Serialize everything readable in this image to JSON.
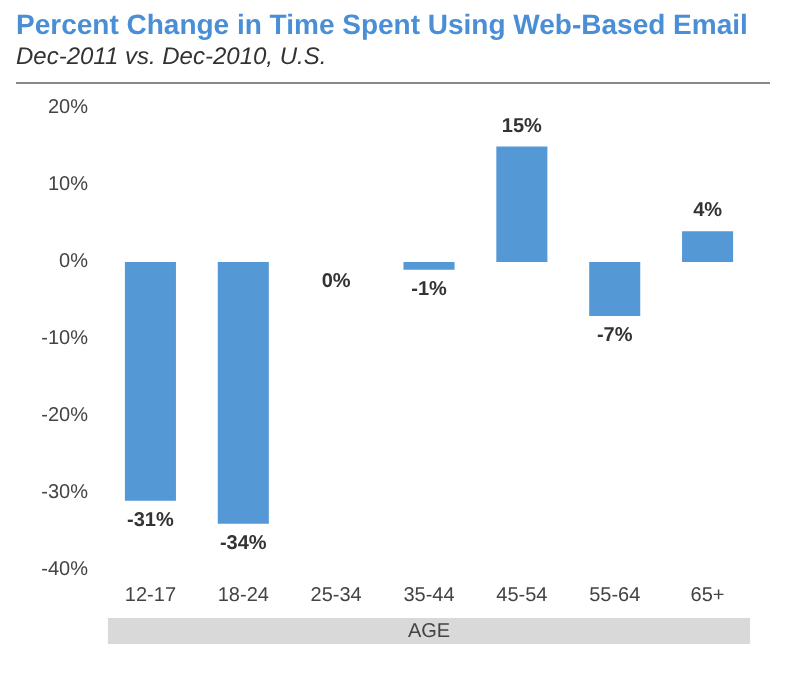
{
  "chart_data": {
    "type": "bar",
    "title": "Percent Change in Time Spent Using Web-Based Email",
    "subtitle": "Dec-2011 vs. Dec-2010, U.S.",
    "xlabel": "AGE",
    "categories": [
      "12-17",
      "18-24",
      "25-34",
      "35-44",
      "45-54",
      "55-64",
      "65+"
    ],
    "values": [
      -31,
      -34,
      0,
      -1,
      15,
      -7,
      4
    ],
    "value_labels": [
      "-31%",
      "-34%",
      "0%",
      "-1%",
      "15%",
      "-7%",
      "4%"
    ],
    "color": "#5499d6",
    "ylim": [
      -40,
      20
    ],
    "yticks": [
      {
        "value": -40,
        "label": "-40%"
      },
      {
        "value": -30,
        "label": "-30%"
      },
      {
        "value": -20,
        "label": "-20%"
      },
      {
        "value": -10,
        "label": "-10%"
      },
      {
        "value": 0,
        "label": "0%"
      },
      {
        "value": 10,
        "label": "10%"
      },
      {
        "value": 20,
        "label": "20%"
      }
    ],
    "grid": false
  }
}
